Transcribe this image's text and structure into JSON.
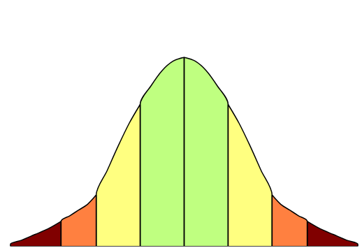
{
  "chart_data": {
    "type": "area",
    "tick_labels": false,
    "grid": false,
    "xlim": [
      -3.95,
      3.95
    ],
    "ylim": [
      0,
      1
    ],
    "series": [
      {
        "color": "#800000",
        "x": [
          -3.95,
          -3.7,
          -3.4,
          -3.1,
          -2.8
        ],
        "values": [
          0.01,
          0.03,
          0.06,
          0.09,
          0.13
        ]
      },
      {
        "color": "#ff8040",
        "x": [
          -2.8,
          -2.6,
          -2.4,
          -2.2,
          -2.0
        ],
        "values": [
          0.13,
          0.16,
          0.19,
          0.22,
          0.27
        ]
      },
      {
        "color": "#ffff80",
        "x": [
          -2.0,
          -1.75,
          -1.5,
          -1.25,
          -1.0
        ],
        "values": [
          0.27,
          0.4,
          0.53,
          0.65,
          0.75
        ]
      },
      {
        "color": "#bfff80",
        "x": [
          -1.0,
          -0.75,
          -0.5,
          -0.25,
          0
        ],
        "values": [
          0.75,
          0.85,
          0.93,
          0.98,
          1.0
        ]
      },
      {
        "color": "#bfff80",
        "x": [
          0,
          0.25,
          0.5,
          0.75,
          1.0
        ],
        "values": [
          1.0,
          0.98,
          0.93,
          0.85,
          0.75
        ]
      },
      {
        "color": "#ffff80",
        "x": [
          1.0,
          1.25,
          1.5,
          1.75,
          2.0
        ],
        "values": [
          0.75,
          0.65,
          0.53,
          0.4,
          0.27
        ]
      },
      {
        "color": "#ff8040",
        "x": [
          2.0,
          2.2,
          2.4,
          2.6,
          2.8
        ],
        "values": [
          0.27,
          0.22,
          0.19,
          0.16,
          0.13
        ]
      },
      {
        "color": "#800000",
        "x": [
          2.8,
          3.1,
          3.4,
          3.7,
          3.95
        ],
        "values": [
          0.13,
          0.09,
          0.06,
          0.03,
          0.01
        ]
      }
    ]
  }
}
